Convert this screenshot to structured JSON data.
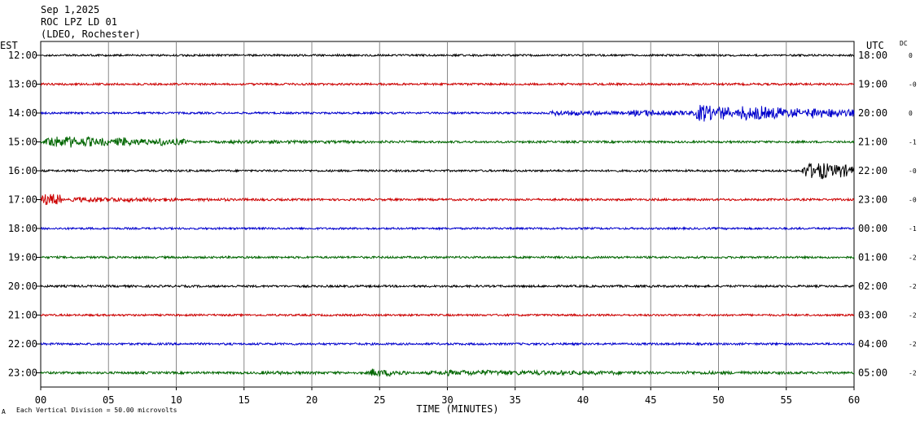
{
  "header": {
    "date": "Sep 1,2025",
    "station": "ROC LPZ LD 01",
    "network": "(LDEO, Rochester)"
  },
  "left_zone": "EST",
  "right_zone": "UTC",
  "dc_label": "DC",
  "footer": {
    "small_mark": "A",
    "scale_note": "Each Vertical Division =   50.00 microvolts"
  },
  "colors": {
    "cycle": [
      "#000000",
      "#cc0000",
      "#0000cc",
      "#006600"
    ],
    "grid": "#888888"
  },
  "chart_data": {
    "type": "line",
    "title": "",
    "xlabel": "TIME (MINUTES)",
    "ylabel": "",
    "xlim": [
      0,
      60
    ],
    "x_ticks": [
      "00",
      "05",
      "10",
      "15",
      "20",
      "25",
      "30",
      "35",
      "40",
      "45",
      "50",
      "55",
      "60"
    ],
    "rows": [
      {
        "left": "12:00",
        "right": "18:00",
        "dc": "0",
        "noise": 1.2,
        "events": []
      },
      {
        "left": "13:00",
        "right": "19:00",
        "dc": "-0",
        "noise": 1.3,
        "events": []
      },
      {
        "left": "14:00",
        "right": "20:00",
        "dc": "0",
        "noise": 1.2,
        "events": [
          {
            "start": 37,
            "end": 43,
            "amp": 4
          },
          {
            "start": 43,
            "end": 48,
            "amp": 5
          },
          {
            "start": 48,
            "end": 51,
            "amp": 13
          },
          {
            "start": 51,
            "end": 56,
            "amp": 11
          },
          {
            "start": 56,
            "end": 60,
            "amp": 8
          }
        ]
      },
      {
        "left": "15:00",
        "right": "21:00",
        "dc": "-1",
        "noise": 1.3,
        "events": [
          {
            "start": 0,
            "end": 5,
            "amp": 9
          },
          {
            "start": 5,
            "end": 8,
            "amp": 7
          },
          {
            "start": 8,
            "end": 11,
            "amp": 6
          },
          {
            "start": 11,
            "end": 30,
            "amp": 2.5
          }
        ]
      },
      {
        "left": "16:00",
        "right": "22:00",
        "dc": "-0",
        "noise": 1.2,
        "events": [
          {
            "start": 56,
            "end": 60,
            "amp": 13
          }
        ]
      },
      {
        "left": "17:00",
        "right": "23:00",
        "dc": "-0",
        "noise": 1.3,
        "events": [
          {
            "start": 0,
            "end": 1.5,
            "amp": 11
          },
          {
            "start": 1.5,
            "end": 10,
            "amp": 4
          },
          {
            "start": 10,
            "end": 20,
            "amp": 2.2
          }
        ]
      },
      {
        "left": "18:00",
        "right": "00:00",
        "dc": "-1",
        "noise": 1.2,
        "events": []
      },
      {
        "left": "19:00",
        "right": "01:00",
        "dc": "-2",
        "noise": 1.3,
        "events": []
      },
      {
        "left": "20:00",
        "right": "02:00",
        "dc": "-2",
        "noise": 1.3,
        "events": []
      },
      {
        "left": "21:00",
        "right": "03:00",
        "dc": "-2",
        "noise": 1.2,
        "events": []
      },
      {
        "left": "22:00",
        "right": "04:00",
        "dc": "-2",
        "noise": 1.3,
        "events": []
      },
      {
        "left": "23:00",
        "right": "05:00",
        "dc": "-2",
        "noise": 1.4,
        "events": [
          {
            "start": 15,
            "end": 24,
            "amp": 2.5
          },
          {
            "start": 24,
            "end": 27,
            "amp": 6
          },
          {
            "start": 27,
            "end": 45,
            "amp": 4
          },
          {
            "start": 45,
            "end": 60,
            "amp": 2.5
          }
        ]
      }
    ]
  }
}
